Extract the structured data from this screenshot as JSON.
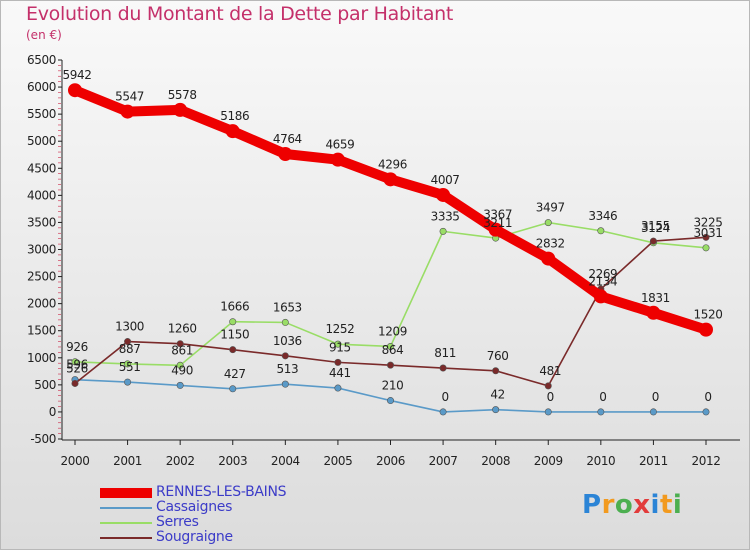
{
  "title": "Evolution du Montant de la Dette par Habitant",
  "unit": "(en €)",
  "logo_text": "Proxiti",
  "colors": {
    "title": "#c4306a",
    "legend_text": "#3c3cc8",
    "axis": "#222222",
    "grid": "#cc2244"
  },
  "chart_data": {
    "type": "line",
    "title": "Evolution du Montant de la Dette par Habitant",
    "subtitle": "(en €)",
    "xlabel": "",
    "ylabel": "",
    "x": [
      "2000",
      "2001",
      "2002",
      "2003",
      "2004",
      "2005",
      "2006",
      "2007",
      "2008",
      "2009",
      "2010",
      "2011",
      "2012"
    ],
    "ylim": [
      -500,
      6500
    ],
    "yticks": [
      -500,
      0,
      500,
      1000,
      1500,
      2000,
      2500,
      3000,
      3500,
      4000,
      4500,
      5000,
      5500,
      6000,
      6500
    ],
    "grid": false,
    "legend_position": "bottom-left",
    "series": [
      {
        "name": "RENNES-LES-BAINS",
        "color": "#ee0000",
        "thick": true,
        "values": [
          5942,
          5547,
          5578,
          5186,
          4764,
          4659,
          4296,
          4007,
          3367,
          2832,
          2134,
          1831,
          1520
        ]
      },
      {
        "name": "Cassaignes",
        "color": "#5a9ac8",
        "thick": false,
        "values": [
          596,
          551,
          490,
          427,
          513,
          441,
          210,
          0,
          42,
          0,
          0,
          0,
          0
        ]
      },
      {
        "name": "Serres",
        "color": "#99dd66",
        "thick": false,
        "values": [
          926,
          887,
          861,
          1666,
          1653,
          1252,
          1209,
          3335,
          3211,
          3497,
          3346,
          3124,
          3031
        ]
      },
      {
        "name": "Sougraigne",
        "color": "#7a2a2a",
        "thick": false,
        "values": [
          526,
          1300,
          1260,
          1150,
          1036,
          915,
          864,
          811,
          760,
          481,
          2269,
          3155,
          3225
        ]
      }
    ]
  }
}
